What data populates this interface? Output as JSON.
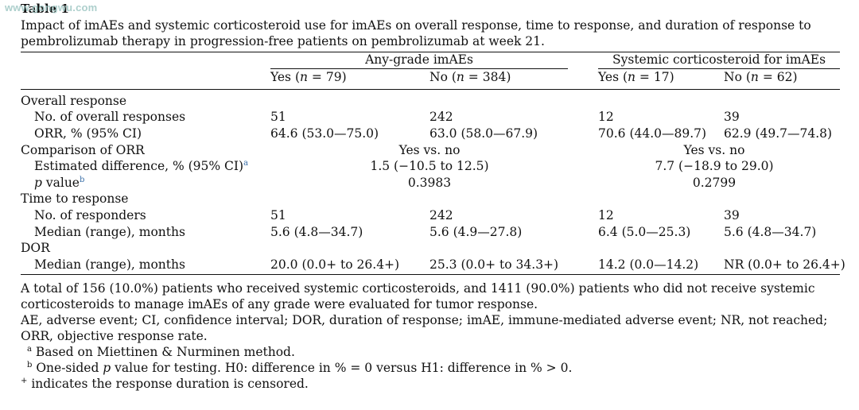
{
  "watermark": "www.gongwu.com",
  "table": {
    "title": "Table 1",
    "caption": "Impact of imAEs and systemic corticosteroid use for imAEs on overall response, time to response, and duration of response to pembrolizumab therapy in progression-free patients on pembrolizumab at week 21.",
    "group_headers": [
      "Any-grade imAEs",
      "Systemic corticosteroid for imAEs"
    ],
    "column_headers": [
      {
        "label": "Yes",
        "n": "79"
      },
      {
        "label": "No",
        "n": "384"
      },
      {
        "label": "Yes",
        "n": "17"
      },
      {
        "label": "No",
        "n": "62"
      }
    ],
    "rows": {
      "overall_response": "Overall response",
      "no_overall_responses": {
        "label": "No. of overall responses",
        "values": [
          "51",
          "242",
          "12",
          "39"
        ]
      },
      "orr": {
        "label": "ORR, % (95% CI)",
        "values": [
          "64.6 (53.0—75.0)",
          "63.0 (58.0—67.9)",
          "70.6 (44.0—89.7)",
          "62.9 (49.7—74.8)"
        ]
      },
      "comparison": {
        "label": "Comparison of ORR",
        "values": [
          "Yes vs. no",
          "Yes vs. no"
        ]
      },
      "estimated_difference": {
        "label": "Estimated difference, % (95% CI)",
        "sup": "a",
        "values": [
          "1.5 (−10.5 to 12.5)",
          "7.7 (−18.9 to 29.0)"
        ]
      },
      "p_value": {
        "label_italic": "p",
        "label_rest": " value",
        "sup": "b",
        "values": [
          "0.3983",
          "0.2799"
        ]
      },
      "time_to_response": "Time to response",
      "no_responders": {
        "label": "No. of responders",
        "values": [
          "51",
          "242",
          "12",
          "39"
        ]
      },
      "median_ttr": {
        "label": "Median (range), months",
        "values": [
          "5.6 (4.8—34.7)",
          "5.6 (4.9—27.8)",
          "6.4 (5.0—25.3)",
          "5.6 (4.8—34.7)"
        ]
      },
      "dor": "DOR",
      "median_dor": {
        "label": "Median (range), months",
        "values": [
          "20.0 (0.0+ to 26.4+)",
          "25.3 (0.0+ to 34.3+)",
          "14.2 (0.0—14.2)",
          "NR (0.0+ to 26.4+)"
        ]
      }
    }
  },
  "notes": {
    "total": "A total of 156 (10.0%) patients who received systemic corticosteroids, and 1411 (90.0%) patients who did not receive systemic corticosteroids to manage imAEs of any grade were evaluated for tumor response.",
    "abbreviations": "AE, adverse event; CI, confidence interval; DOR, duration of response; imAE, immune-mediated adverse event; NR, not reached; ORR, objective response rate.",
    "footnote_a": {
      "mark": "a",
      "text": " Based on Miettinen & Nurminen method."
    },
    "footnote_b": {
      "mark": "b",
      "text_before": " One-sided ",
      "italic": "p",
      "text_after": " value for testing. H0: difference in % = 0 versus H1: difference in % > 0."
    },
    "footnote_plus": {
      "mark": "+",
      "text": " indicates the response duration is censored."
    }
  }
}
